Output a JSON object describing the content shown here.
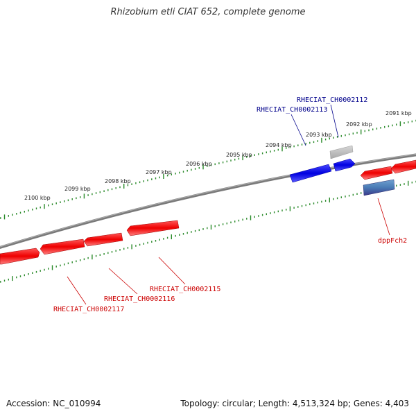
{
  "title": "Rhizobium etli CIAT 652, complete genome",
  "footer": {
    "accession": "Accession: NC_010994",
    "summary": "Topology: circular; Length: 4,513,324 bp; Genes: 4,403"
  },
  "colors": {
    "forward_gene": "#ff0000",
    "reverse_gene": "#0000ee",
    "pseudo_gene": "#bbbbbb",
    "other_feature": "#4a7bb5",
    "backbone": "#808080",
    "tick": "#2a8a2a",
    "forward_label": "#cc0000",
    "reverse_label": "#00008b"
  },
  "kbp_labels": [
    "2100 kbp",
    "2099 kbp",
    "2098 kbp",
    "2097 kbp",
    "2096 kbp",
    "2095 kbp",
    "2094 kbp",
    "2093 kbp",
    "2092 kbp",
    "2091 kbp"
  ],
  "genes_outer": [
    {
      "strand": "reverse",
      "color": "blue"
    },
    {
      "strand": "forward",
      "color": "blue"
    },
    {
      "strand": "forward",
      "color": "gray"
    }
  ],
  "genes_inner": [
    {
      "strand": "reverse",
      "color": "red"
    },
    {
      "strand": "reverse",
      "color": "red"
    },
    {
      "strand": "reverse",
      "color": "red"
    },
    {
      "strand": "reverse",
      "color": "red"
    },
    {
      "strand": "reverse",
      "color": "red"
    },
    {
      "strand": "reverse",
      "color": "red"
    },
    {
      "strand": "forward",
      "color": "red"
    },
    {
      "strand": "none",
      "color": "steelblue"
    }
  ],
  "gene_labels": [
    {
      "text": "RHECIAT_CH0002112",
      "color": "reverse"
    },
    {
      "text": "RHECIAT_CH0002113",
      "color": "reverse"
    },
    {
      "text": "dppFch2",
      "color": "forward"
    },
    {
      "text": "RHECIAT_CH0002115",
      "color": "forward"
    },
    {
      "text": "RHECIAT_CH0002116",
      "color": "forward"
    },
    {
      "text": "RHECIAT_CH0002117",
      "color": "forward"
    }
  ]
}
